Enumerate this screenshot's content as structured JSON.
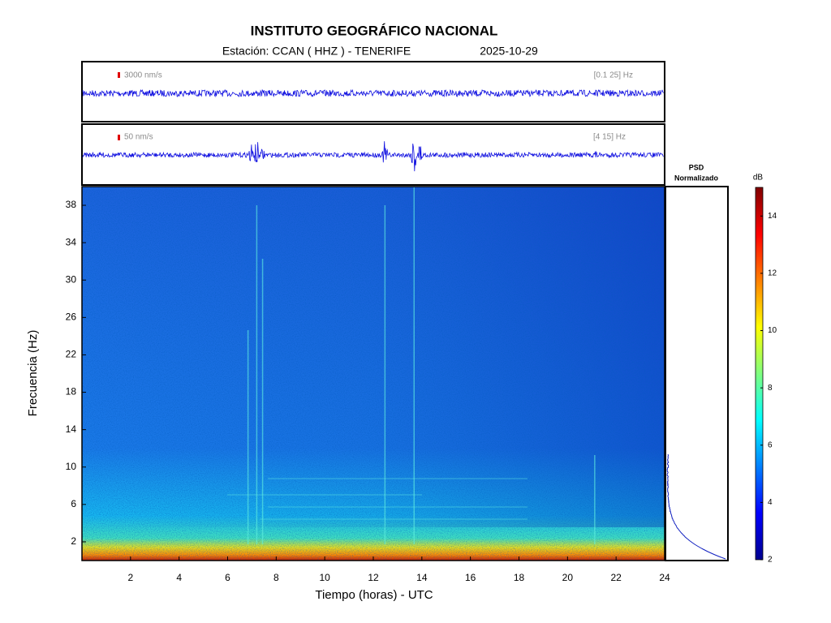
{
  "chart_data": {
    "type": "spectrogram",
    "title": "INSTITUTO GEOGRÁFICO NACIONAL",
    "subtitle": "Estación:  CCAN ( HHZ ) - TENERIFE",
    "date": "2025-10-29",
    "traces": [
      {
        "scale_label": "3000 nm/s",
        "band": "[0.1 25] Hz"
      },
      {
        "scale_label": "50 nm/s",
        "band": "[4 15] Hz"
      }
    ],
    "psd_title": [
      "PSD",
      "Normalizado"
    ],
    "xlabel": "Tiempo (horas) - UTC",
    "ylabel": "Frecuencia  (Hz)",
    "xlim": [
      0,
      24
    ],
    "xticks": [
      2,
      4,
      6,
      8,
      10,
      12,
      14,
      16,
      18,
      20,
      22,
      24
    ],
    "ylim": [
      0,
      40
    ],
    "yticks": [
      2,
      6,
      10,
      14,
      18,
      22,
      26,
      30,
      34,
      38
    ],
    "colorbar": {
      "label": "dB",
      "clim": [
        2,
        15
      ],
      "ticks": [
        2,
        4,
        6,
        8,
        10,
        12,
        14
      ]
    }
  }
}
